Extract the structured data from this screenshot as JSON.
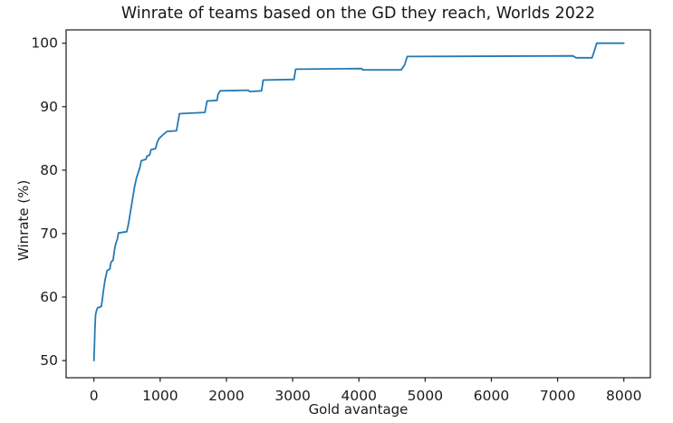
{
  "chart_data": {
    "type": "line",
    "title": "Winrate of teams based on the GD they reach, Worlds 2022",
    "xlabel": "Gold avantage",
    "ylabel": "Winrate (%)",
    "x_ticks": [
      0,
      1000,
      2000,
      3000,
      4000,
      5000,
      6000,
      7000,
      8000
    ],
    "y_ticks": [
      50,
      60,
      70,
      80,
      90,
      100
    ],
    "xlim": [
      -420,
      8400
    ],
    "ylim": [
      47.3,
      102.1
    ],
    "grid": false,
    "legend": "none",
    "line_color": "#2679b2",
    "spine_color": "#1a1a1a",
    "series": [
      {
        "name": "winrate",
        "points": [
          [
            0,
            50
          ],
          [
            8,
            52.5
          ],
          [
            15,
            55
          ],
          [
            25,
            57.2
          ],
          [
            40,
            57.9
          ],
          [
            55,
            58.3
          ],
          [
            110,
            58.5
          ],
          [
            125,
            59.5
          ],
          [
            140,
            60.8
          ],
          [
            155,
            61.8
          ],
          [
            170,
            62.8
          ],
          [
            185,
            63.5
          ],
          [
            200,
            64.2
          ],
          [
            240,
            64.4
          ],
          [
            252,
            65.2
          ],
          [
            262,
            65.6
          ],
          [
            288,
            65.8
          ],
          [
            300,
            66.7
          ],
          [
            315,
            67.8
          ],
          [
            335,
            68.6
          ],
          [
            355,
            69.2
          ],
          [
            370,
            70.1
          ],
          [
            495,
            70.3
          ],
          [
            515,
            71.2
          ],
          [
            540,
            72.7
          ],
          [
            575,
            75.0
          ],
          [
            615,
            77.5
          ],
          [
            645,
            78.9
          ],
          [
            690,
            80.3
          ],
          [
            715,
            81.5
          ],
          [
            785,
            81.7
          ],
          [
            800,
            82.2
          ],
          [
            842,
            82.4
          ],
          [
            860,
            83.2
          ],
          [
            930,
            83.4
          ],
          [
            955,
            84.4
          ],
          [
            985,
            85.0
          ],
          [
            1045,
            85.6
          ],
          [
            1105,
            86.1
          ],
          [
            1245,
            86.2
          ],
          [
            1265,
            87.3
          ],
          [
            1290,
            88.9
          ],
          [
            1675,
            89.1
          ],
          [
            1695,
            90.2
          ],
          [
            1708,
            90.9
          ],
          [
            1860,
            91.0
          ],
          [
            1872,
            91.9
          ],
          [
            1905,
            92.5
          ],
          [
            2330,
            92.6
          ],
          [
            2350,
            92.4
          ],
          [
            2530,
            92.5
          ],
          [
            2555,
            94.2
          ],
          [
            3020,
            94.3
          ],
          [
            3045,
            95.9
          ],
          [
            4040,
            96.0
          ],
          [
            4060,
            95.8
          ],
          [
            4640,
            95.8
          ],
          [
            4690,
            96.6
          ],
          [
            4730,
            97.9
          ],
          [
            7230,
            98.0
          ],
          [
            7280,
            97.7
          ],
          [
            7520,
            97.7
          ],
          [
            7555,
            98.8
          ],
          [
            7590,
            100
          ],
          [
            8000,
            100
          ]
        ]
      }
    ]
  }
}
